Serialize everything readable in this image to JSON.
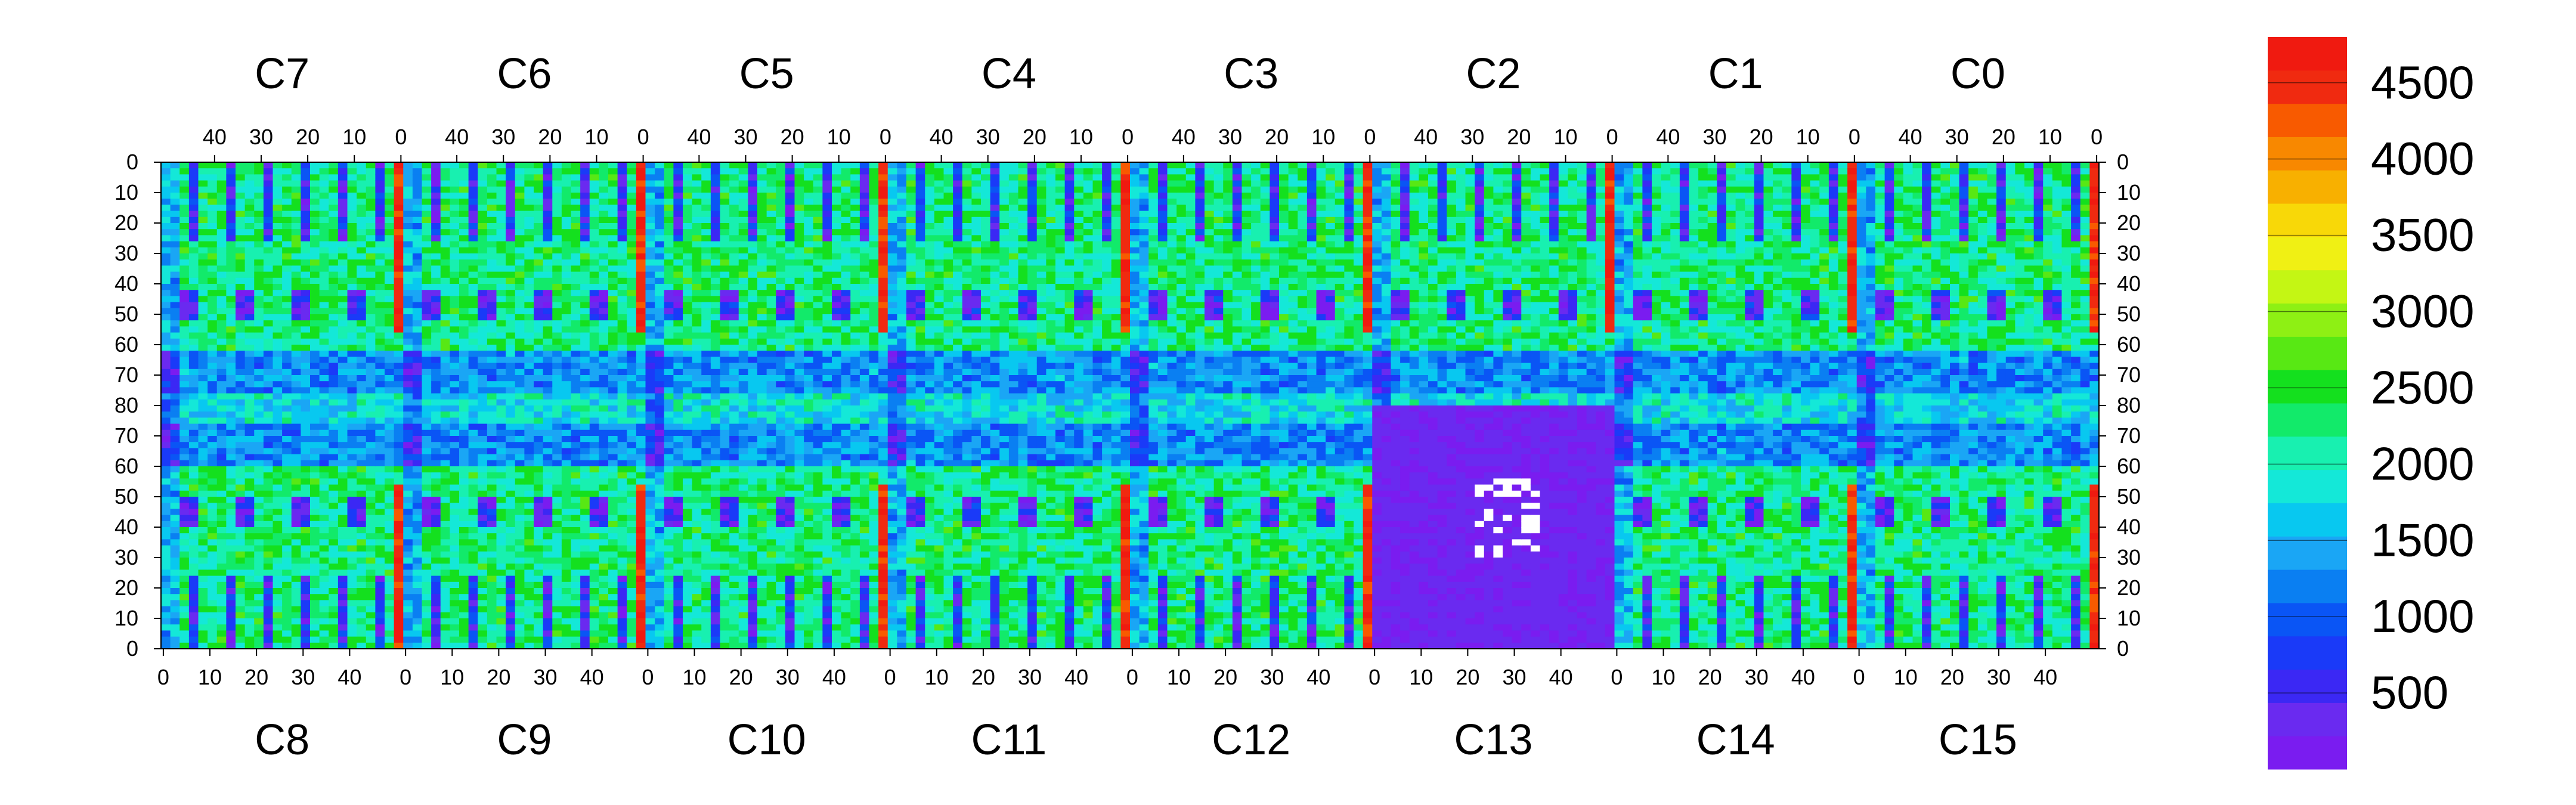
{
  "chart_data": {
    "type": "heatmap",
    "title": "",
    "xlabel": "",
    "ylabel": "",
    "top_chip_labels": [
      "C7",
      "C6",
      "C5",
      "C4",
      "C3",
      "C2",
      "C1",
      "C0"
    ],
    "bottom_chip_labels": [
      "C8",
      "C9",
      "C10",
      "C11",
      "C12",
      "C13",
      "C14",
      "C15"
    ],
    "top_column_ticks": [
      "40",
      "30",
      "20",
      "10",
      "0"
    ],
    "bottom_column_ticks": [
      "0",
      "10",
      "20",
      "30",
      "40"
    ],
    "left_row_ticks": [
      "0",
      "10",
      "20",
      "30",
      "40",
      "50",
      "60",
      "70",
      "80",
      "70",
      "60",
      "50",
      "40",
      "30",
      "20",
      "10",
      "0"
    ],
    "right_row_ticks": [
      "0",
      "10",
      "20",
      "30",
      "40",
      "50",
      "60",
      "70",
      "80",
      "70",
      "60",
      "50",
      "40",
      "30",
      "20",
      "10",
      "0"
    ],
    "chip_columns": 52,
    "rows_per_half": 80,
    "zlim": [
      0,
      4800
    ],
    "colorbar_ticks": [
      "500",
      "1000",
      "1500",
      "2000",
      "2500",
      "3000",
      "3500",
      "4000",
      "4500"
    ],
    "colorbar_tick_values": [
      500,
      1000,
      1500,
      2000,
      2500,
      3000,
      3500,
      4000,
      4500
    ],
    "palette": [
      "#7a1cf0",
      "#6a2af0",
      "#3b28f4",
      "#1a3af8",
      "#0a55f5",
      "#0a7ff2",
      "#1aa6f5",
      "#08c8f0",
      "#14e8d8",
      "#18f0b0",
      "#12ea6a",
      "#14e01e",
      "#58e814",
      "#8ef014",
      "#c4f614",
      "#f0f014",
      "#f8d808",
      "#f8b000",
      "#f88800",
      "#f85a00",
      "#f02a10",
      "#f01a10"
    ],
    "summary": {
      "typical_background": 2200,
      "dead_column_level": 4700,
      "dead_chip": "C13",
      "dead_chip_level": 150,
      "low_blocks": 300
    }
  }
}
